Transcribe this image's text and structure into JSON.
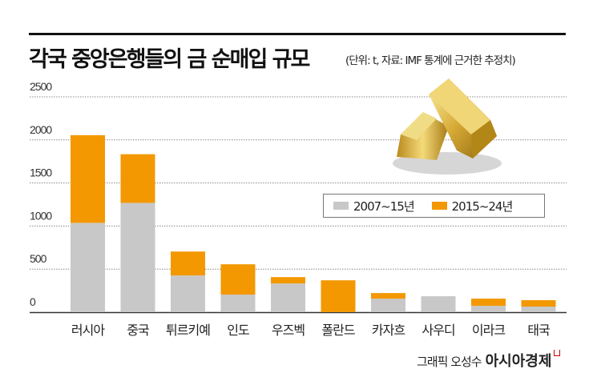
{
  "chart_data": {
    "type": "bar",
    "stacked": true,
    "title": "각국 중앙은행들의 금 순매입 규모",
    "subtitle": "(단위: t, 자료: IMF 통계에 근거한 추정치)",
    "categories": [
      "러시아",
      "중국",
      "튀르키예",
      "인도",
      "우즈벡",
      "폴란드",
      "카자흐",
      "사우디",
      "이라크",
      "태국"
    ],
    "series": [
      {
        "name": "2007~15년",
        "color": "#c8c8c8",
        "values": [
          1037,
          1269,
          426,
          204,
          333,
          0,
          157,
          185,
          74,
          65
        ]
      },
      {
        "name": "2015~24년",
        "color": "#f39800",
        "values": [
          1018,
          565,
          278,
          352,
          74,
          370,
          65,
          0,
          83,
          74
        ]
      }
    ],
    "yticks": [
      0,
      500,
      1000,
      1500,
      2000,
      2500
    ],
    "ylim": [
      0,
      2500
    ],
    "grid": true,
    "legend_position": "right-middle"
  },
  "footer": {
    "credit": "그래픽 오성수",
    "brand": "아시아경제"
  }
}
